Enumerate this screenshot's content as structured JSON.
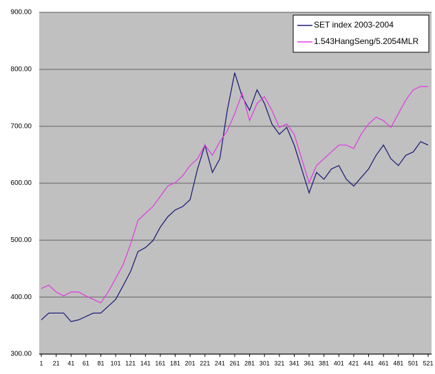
{
  "chart_data": {
    "type": "line",
    "x": [
      1,
      11,
      21,
      31,
      41,
      51,
      61,
      71,
      81,
      91,
      101,
      111,
      121,
      131,
      141,
      151,
      161,
      171,
      181,
      191,
      201,
      211,
      221,
      231,
      241,
      251,
      261,
      271,
      281,
      291,
      301,
      311,
      321,
      331,
      341,
      351,
      361,
      371,
      381,
      391,
      401,
      411,
      421,
      431,
      441,
      451,
      461,
      471,
      481,
      491,
      501,
      511,
      521
    ],
    "series": [
      {
        "name": "SET index 2003-2004",
        "color": "#1f1f7a",
        "values": [
          360,
          372,
          372,
          372,
          357,
          360,
          366,
          372,
          372,
          384,
          396,
          420,
          445,
          480,
          487,
          499,
          523,
          541,
          553,
          559,
          571,
          625,
          667,
          619,
          643,
          728,
          794,
          752,
          728,
          764,
          740,
          704,
          686,
          698,
          667,
          625,
          583,
          619,
          607,
          625,
          631,
          607,
          595,
          610,
          625,
          649,
          667,
          643,
          631,
          649,
          655,
          673,
          667
        ]
      },
      {
        "name": "1.543HangSeng/5.2054MLR",
        "color": "#e040e0",
        "values": [
          415,
          421,
          409,
          402,
          409,
          409,
          402,
          396,
          390,
          409,
          433,
          457,
          493,
          535,
          547,
          559,
          577,
          595,
          601,
          613,
          631,
          643,
          667,
          649,
          673,
          692,
          722,
          758,
          710,
          740,
          752,
          728,
          698,
          704,
          686,
          643,
          601,
          631,
          643,
          655,
          667,
          667,
          661,
          686,
          704,
          716,
          710,
          698,
          722,
          746,
          764,
          770,
          770
        ]
      }
    ],
    "xlim": [
      1,
      521
    ],
    "xticks": [
      1,
      21,
      41,
      61,
      81,
      101,
      121,
      141,
      161,
      181,
      201,
      221,
      241,
      261,
      281,
      301,
      321,
      341,
      361,
      381,
      401,
      421,
      441,
      461,
      481,
      501,
      521
    ],
    "ylim": [
      300,
      900
    ],
    "yticks": [
      {
        "value": 300,
        "label": "300.00"
      },
      {
        "value": 400,
        "label": "400.00"
      },
      {
        "value": 500,
        "label": "500.00"
      },
      {
        "value": 600,
        "label": "600.00"
      },
      {
        "value": 700,
        "label": "700.00"
      },
      {
        "value": 800,
        "label": "800.00"
      },
      {
        "value": 900,
        "label": "900.00"
      }
    ],
    "grid": true,
    "legend": "top-right"
  }
}
